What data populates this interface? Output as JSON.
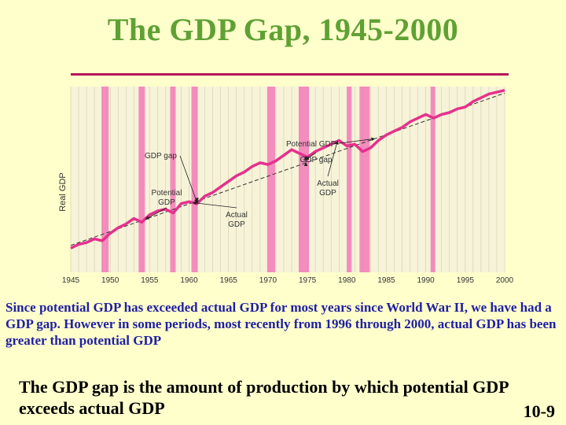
{
  "slide": {
    "title": "The GDP Gap, 1945-2000",
    "caption": "Since potential GDP has exceeded actual GDP for most years since World War II, we have had a GDP gap.  However in some periods, most recently from 1996 through 2000, actual GDP has been greater than potential GDP",
    "definition": "The GDP gap is the amount of production by which potential GDP exceeds actual GDP",
    "slide_number": "10-9"
  },
  "colors": {
    "title": "#5fa134",
    "rule": "#b3145a",
    "caption": "#1f1fa3",
    "actual_line": "#e6308c",
    "recession_band": "#f27ab9",
    "potential_line": "#333333",
    "plot_bg": "#f6f3d8",
    "grid": "#c9c4a6"
  },
  "chart_data": {
    "type": "line",
    "title": "",
    "xlabel": "",
    "ylabel": "Real GDP",
    "xlim": [
      1945,
      2000
    ],
    "ylim": [
      0,
      100
    ],
    "x_ticks": [
      "1945",
      "1950",
      "1955",
      "1960",
      "1965",
      "1970",
      "1975",
      "1980",
      "1985",
      "1990",
      "1995",
      "2000"
    ],
    "y_ticks": [],
    "recessions": [
      [
        1948.9,
        1949.8
      ],
      [
        1953.6,
        1954.4
      ],
      [
        1957.6,
        1958.3
      ],
      [
        1960.3,
        1961.1
      ],
      [
        1969.9,
        1970.9
      ],
      [
        1973.9,
        1975.2
      ],
      [
        1980.0,
        1980.6
      ],
      [
        1981.6,
        1982.9
      ],
      [
        1990.6,
        1991.2
      ]
    ],
    "series": [
      {
        "name": "Potential GDP",
        "style": "dashed",
        "x": [
          1945,
          2000
        ],
        "values": [
          14.5,
          96.5
        ]
      },
      {
        "name": "Actual GDP",
        "style": "solid",
        "x": [
          1945,
          1946,
          1947,
          1948,
          1949,
          1950,
          1951,
          1952,
          1953,
          1954,
          1955,
          1956,
          1957,
          1958,
          1959,
          1960,
          1961,
          1962,
          1963,
          1964,
          1965,
          1966,
          1967,
          1968,
          1969,
          1970,
          1971,
          1972,
          1973,
          1974,
          1975,
          1976,
          1977,
          1978,
          1979,
          1980,
          1981,
          1982,
          1983,
          1984,
          1985,
          1986,
          1987,
          1988,
          1989,
          1990,
          1991,
          1992,
          1993,
          1994,
          1995,
          1996,
          1997,
          1998,
          1999,
          2000
        ],
        "values": [
          13,
          15,
          16,
          18,
          17,
          21,
          24,
          26,
          29,
          27,
          31,
          33,
          34,
          32,
          37,
          38,
          37,
          41,
          43,
          46,
          49,
          52,
          54,
          57,
          59,
          58,
          60,
          63,
          66,
          64,
          62,
          65,
          67,
          69,
          71,
          68,
          69,
          65,
          67,
          71,
          74,
          76,
          78,
          81,
          83,
          85,
          83,
          85,
          86,
          88,
          89,
          92,
          94,
          96,
          97,
          98
        ]
      }
    ],
    "annotations": [
      {
        "label": "Potential GDP",
        "target_year": 1983.5
      },
      {
        "label": "GDP gap",
        "target_year": 1961
      },
      {
        "label": "Potential\nGDP",
        "target_year": 1954.5
      },
      {
        "label": "Actual\nGDP",
        "target_year": 1960.5
      },
      {
        "label": "GDP gap",
        "target_year": 1974.8
      },
      {
        "label": "Actual\nGDP",
        "target_year": 1978.8
      }
    ]
  }
}
